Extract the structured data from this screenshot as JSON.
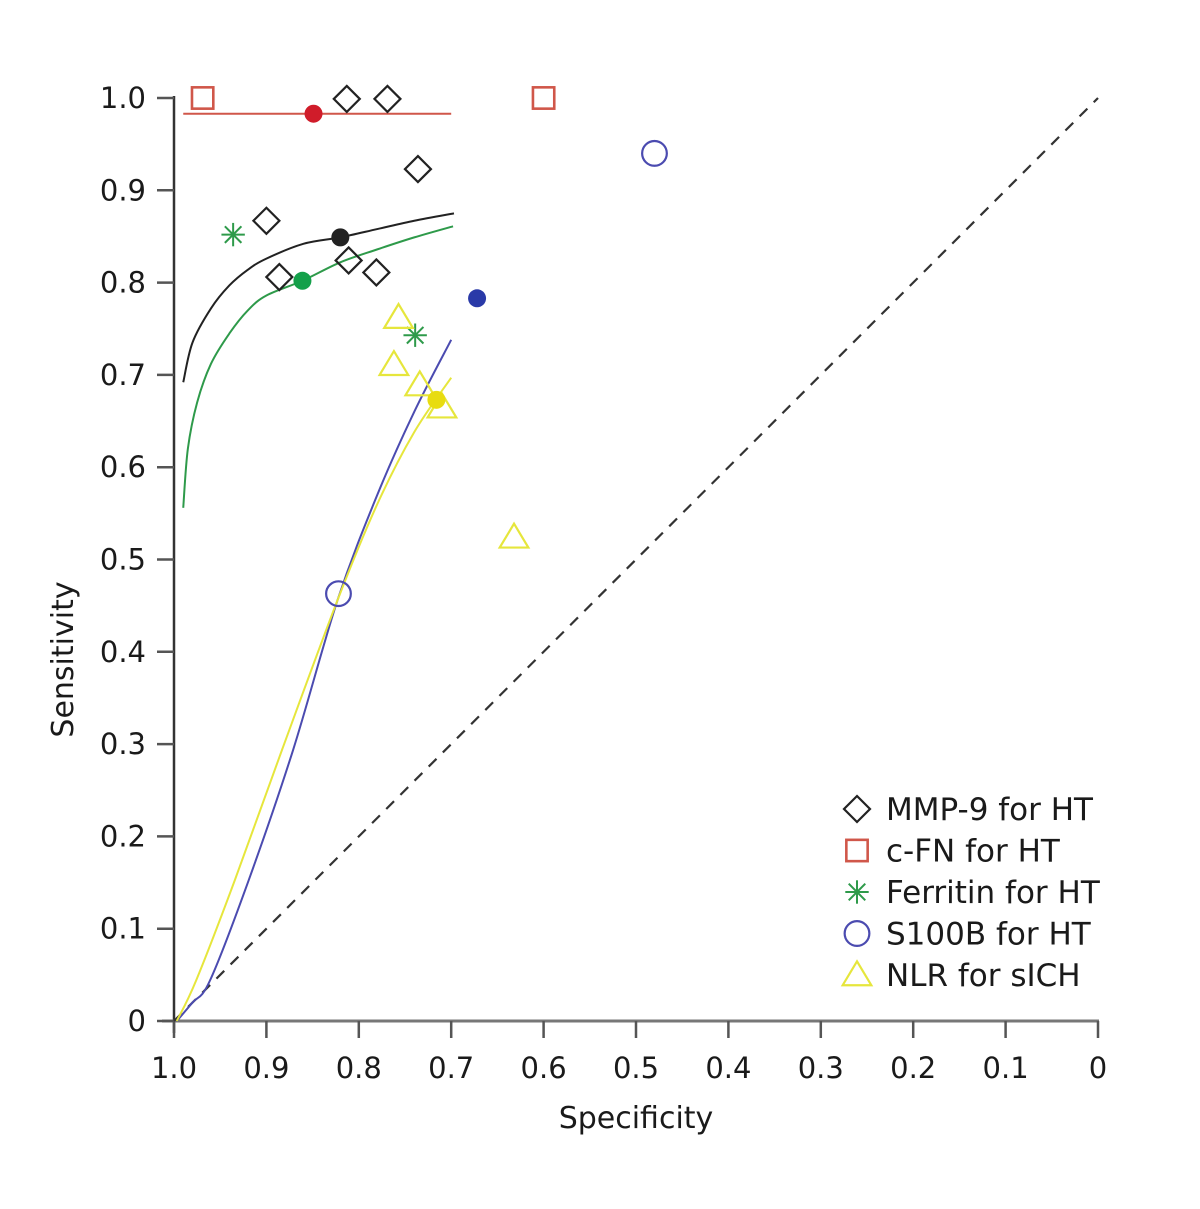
{
  "chart_data": {
    "type": "scatter",
    "title": "",
    "xlabel": "Specificity",
    "ylabel": "Sensitivity",
    "xlim": [
      1.0,
      0.0
    ],
    "ylim": [
      0.0,
      1.0
    ],
    "x_reversed": true,
    "grid": false,
    "legend_position": "bottom-right",
    "x_ticks": [
      1.0,
      0.9,
      0.8,
      0.7,
      0.6,
      0.5,
      0.4,
      0.3,
      0.2,
      0.1,
      0.0
    ],
    "x_tick_labels": [
      "1.0",
      "0.9",
      "0.8",
      "0.7",
      "0.6",
      "0.5",
      "0.4",
      "0.3",
      "0.2",
      "0.1",
      "0"
    ],
    "y_ticks": [
      0.0,
      0.1,
      0.2,
      0.3,
      0.4,
      0.5,
      0.6,
      0.7,
      0.8,
      0.9,
      1.0
    ],
    "y_tick_labels": [
      "0",
      "0.1",
      "0.2",
      "0.3",
      "0.4",
      "0.5",
      "0.6",
      "0.7",
      "0.8",
      "0.9",
      "1.0"
    ],
    "reference_line": {
      "name": "chance diagonal",
      "points": [
        [
          1.0,
          0.0
        ],
        [
          0.0,
          1.0
        ]
      ],
      "style": "dashed",
      "color": "#333333"
    },
    "series": [
      {
        "name": "MMP-9 for HT",
        "marker": "diamond",
        "color": "#222222",
        "points": [
          [
            0.813,
            0.999
          ],
          [
            0.769,
            0.999
          ],
          [
            0.736,
            0.923
          ],
          [
            0.9,
            0.867
          ],
          [
            0.811,
            0.824
          ],
          [
            0.781,
            0.811
          ],
          [
            0.886,
            0.806
          ]
        ],
        "summary_point": [
          0.82,
          0.849
        ],
        "sroc_curve": [
          [
            0.99,
            0.692
          ],
          [
            0.98,
            0.735
          ],
          [
            0.96,
            0.772
          ],
          [
            0.94,
            0.797
          ],
          [
            0.92,
            0.814
          ],
          [
            0.9,
            0.826
          ],
          [
            0.86,
            0.842
          ],
          [
            0.82,
            0.849
          ],
          [
            0.78,
            0.858
          ],
          [
            0.74,
            0.867
          ],
          [
            0.697,
            0.875
          ]
        ]
      },
      {
        "name": "c-FN for HT",
        "marker": "square",
        "color": "#d0574a",
        "points": [
          [
            0.969,
            1.0
          ],
          [
            0.6,
            1.0
          ]
        ],
        "summary_point": [
          0.849,
          0.983
        ],
        "summary_color": "#d01c2a",
        "sroc_curve": [
          [
            0.99,
            0.983
          ],
          [
            0.7,
            0.983
          ]
        ]
      },
      {
        "name": "Ferritin for HT",
        "marker": "asterisk",
        "color": "#2e9a4a",
        "points": [
          [
            0.936,
            0.852
          ],
          [
            0.739,
            0.743
          ]
        ],
        "summary_point": [
          0.861,
          0.802
        ],
        "summary_color": "#14a04a",
        "sroc_curve": [
          [
            0.99,
            0.556
          ],
          [
            0.985,
            0.62
          ],
          [
            0.975,
            0.67
          ],
          [
            0.96,
            0.712
          ],
          [
            0.94,
            0.745
          ],
          [
            0.92,
            0.77
          ],
          [
            0.9,
            0.786
          ],
          [
            0.861,
            0.802
          ],
          [
            0.82,
            0.822
          ],
          [
            0.78,
            0.836
          ],
          [
            0.74,
            0.849
          ],
          [
            0.698,
            0.861
          ]
        ]
      },
      {
        "name": "S100B for HT",
        "marker": "circle",
        "color": "#4b4bb0",
        "points": [
          [
            0.48,
            0.94
          ],
          [
            0.822,
            0.463
          ]
        ],
        "summary_point": [
          0.672,
          0.783
        ],
        "summary_color": "#2a3aa8",
        "sroc_curve": [
          [
            0.997,
            0.0
          ],
          [
            0.98,
            0.02
          ],
          [
            0.961,
            0.044
          ],
          [
            0.919,
            0.153
          ],
          [
            0.871,
            0.294
          ],
          [
            0.823,
            0.456
          ],
          [
            0.78,
            0.57
          ],
          [
            0.74,
            0.66
          ],
          [
            0.7,
            0.738
          ]
        ]
      },
      {
        "name": "NLR for sICH",
        "marker": "triangle",
        "color": "#e6e63c",
        "points": [
          [
            0.757,
            0.762
          ],
          [
            0.762,
            0.711
          ],
          [
            0.734,
            0.689
          ],
          [
            0.71,
            0.665
          ],
          [
            0.632,
            0.524
          ]
        ],
        "summary_point": [
          0.716,
          0.673
        ],
        "summary_color": "#e8dc10",
        "sroc_curve": [
          [
            0.997,
            0.0
          ],
          [
            0.976,
            0.044
          ],
          [
            0.934,
            0.153
          ],
          [
            0.883,
            0.294
          ],
          [
            0.823,
            0.456
          ],
          [
            0.78,
            0.56
          ],
          [
            0.74,
            0.638
          ],
          [
            0.7,
            0.697
          ]
        ]
      }
    ]
  }
}
